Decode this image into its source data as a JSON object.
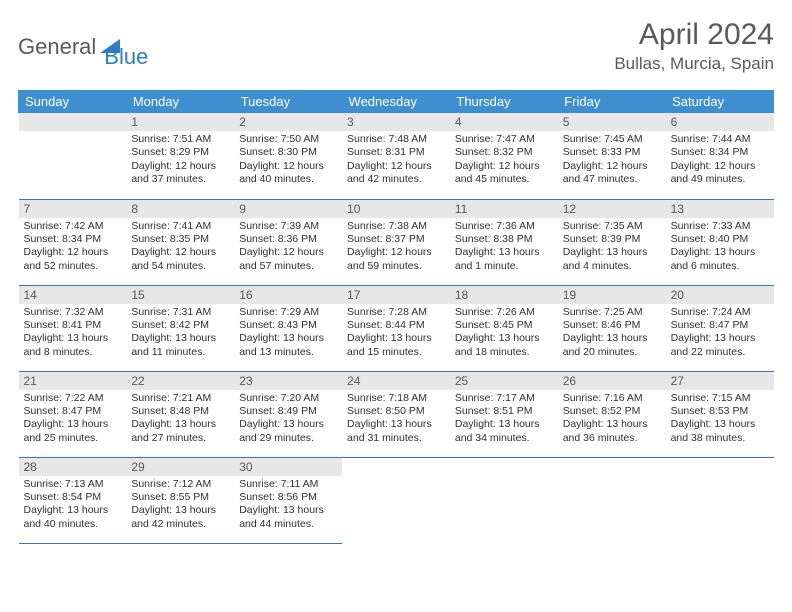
{
  "brand": {
    "part1": "General",
    "part2": "Blue"
  },
  "title": "April 2024",
  "location": "Bullas, Murcia, Spain",
  "colors": {
    "header_bg": "#3d8fcf",
    "header_text": "#ffffff",
    "daynum_bg": "#e7e7e7",
    "border": "#2f7bc4",
    "brand_gray": "#5a5a5a",
    "brand_blue": "#2f7bc4"
  },
  "day_headers": [
    "Sunday",
    "Monday",
    "Tuesday",
    "Wednesday",
    "Thursday",
    "Friday",
    "Saturday"
  ],
  "weeks": [
    [
      {
        "n": "",
        "sr": "",
        "ss": "",
        "dl": ""
      },
      {
        "n": "1",
        "sr": "Sunrise: 7:51 AM",
        "ss": "Sunset: 8:29 PM",
        "dl": "Daylight: 12 hours and 37 minutes."
      },
      {
        "n": "2",
        "sr": "Sunrise: 7:50 AM",
        "ss": "Sunset: 8:30 PM",
        "dl": "Daylight: 12 hours and 40 minutes."
      },
      {
        "n": "3",
        "sr": "Sunrise: 7:48 AM",
        "ss": "Sunset: 8:31 PM",
        "dl": "Daylight: 12 hours and 42 minutes."
      },
      {
        "n": "4",
        "sr": "Sunrise: 7:47 AM",
        "ss": "Sunset: 8:32 PM",
        "dl": "Daylight: 12 hours and 45 minutes."
      },
      {
        "n": "5",
        "sr": "Sunrise: 7:45 AM",
        "ss": "Sunset: 8:33 PM",
        "dl": "Daylight: 12 hours and 47 minutes."
      },
      {
        "n": "6",
        "sr": "Sunrise: 7:44 AM",
        "ss": "Sunset: 8:34 PM",
        "dl": "Daylight: 12 hours and 49 minutes."
      }
    ],
    [
      {
        "n": "7",
        "sr": "Sunrise: 7:42 AM",
        "ss": "Sunset: 8:34 PM",
        "dl": "Daylight: 12 hours and 52 minutes."
      },
      {
        "n": "8",
        "sr": "Sunrise: 7:41 AM",
        "ss": "Sunset: 8:35 PM",
        "dl": "Daylight: 12 hours and 54 minutes."
      },
      {
        "n": "9",
        "sr": "Sunrise: 7:39 AM",
        "ss": "Sunset: 8:36 PM",
        "dl": "Daylight: 12 hours and 57 minutes."
      },
      {
        "n": "10",
        "sr": "Sunrise: 7:38 AM",
        "ss": "Sunset: 8:37 PM",
        "dl": "Daylight: 12 hours and 59 minutes."
      },
      {
        "n": "11",
        "sr": "Sunrise: 7:36 AM",
        "ss": "Sunset: 8:38 PM",
        "dl": "Daylight: 13 hours and 1 minute."
      },
      {
        "n": "12",
        "sr": "Sunrise: 7:35 AM",
        "ss": "Sunset: 8:39 PM",
        "dl": "Daylight: 13 hours and 4 minutes."
      },
      {
        "n": "13",
        "sr": "Sunrise: 7:33 AM",
        "ss": "Sunset: 8:40 PM",
        "dl": "Daylight: 13 hours and 6 minutes."
      }
    ],
    [
      {
        "n": "14",
        "sr": "Sunrise: 7:32 AM",
        "ss": "Sunset: 8:41 PM",
        "dl": "Daylight: 13 hours and 8 minutes."
      },
      {
        "n": "15",
        "sr": "Sunrise: 7:31 AM",
        "ss": "Sunset: 8:42 PM",
        "dl": "Daylight: 13 hours and 11 minutes."
      },
      {
        "n": "16",
        "sr": "Sunrise: 7:29 AM",
        "ss": "Sunset: 8:43 PM",
        "dl": "Daylight: 13 hours and 13 minutes."
      },
      {
        "n": "17",
        "sr": "Sunrise: 7:28 AM",
        "ss": "Sunset: 8:44 PM",
        "dl": "Daylight: 13 hours and 15 minutes."
      },
      {
        "n": "18",
        "sr": "Sunrise: 7:26 AM",
        "ss": "Sunset: 8:45 PM",
        "dl": "Daylight: 13 hours and 18 minutes."
      },
      {
        "n": "19",
        "sr": "Sunrise: 7:25 AM",
        "ss": "Sunset: 8:46 PM",
        "dl": "Daylight: 13 hours and 20 minutes."
      },
      {
        "n": "20",
        "sr": "Sunrise: 7:24 AM",
        "ss": "Sunset: 8:47 PM",
        "dl": "Daylight: 13 hours and 22 minutes."
      }
    ],
    [
      {
        "n": "21",
        "sr": "Sunrise: 7:22 AM",
        "ss": "Sunset: 8:47 PM",
        "dl": "Daylight: 13 hours and 25 minutes."
      },
      {
        "n": "22",
        "sr": "Sunrise: 7:21 AM",
        "ss": "Sunset: 8:48 PM",
        "dl": "Daylight: 13 hours and 27 minutes."
      },
      {
        "n": "23",
        "sr": "Sunrise: 7:20 AM",
        "ss": "Sunset: 8:49 PM",
        "dl": "Daylight: 13 hours and 29 minutes."
      },
      {
        "n": "24",
        "sr": "Sunrise: 7:18 AM",
        "ss": "Sunset: 8:50 PM",
        "dl": "Daylight: 13 hours and 31 minutes."
      },
      {
        "n": "25",
        "sr": "Sunrise: 7:17 AM",
        "ss": "Sunset: 8:51 PM",
        "dl": "Daylight: 13 hours and 34 minutes."
      },
      {
        "n": "26",
        "sr": "Sunrise: 7:16 AM",
        "ss": "Sunset: 8:52 PM",
        "dl": "Daylight: 13 hours and 36 minutes."
      },
      {
        "n": "27",
        "sr": "Sunrise: 7:15 AM",
        "ss": "Sunset: 8:53 PM",
        "dl": "Daylight: 13 hours and 38 minutes."
      }
    ],
    [
      {
        "n": "28",
        "sr": "Sunrise: 7:13 AM",
        "ss": "Sunset: 8:54 PM",
        "dl": "Daylight: 13 hours and 40 minutes."
      },
      {
        "n": "29",
        "sr": "Sunrise: 7:12 AM",
        "ss": "Sunset: 8:55 PM",
        "dl": "Daylight: 13 hours and 42 minutes."
      },
      {
        "n": "30",
        "sr": "Sunrise: 7:11 AM",
        "ss": "Sunset: 8:56 PM",
        "dl": "Daylight: 13 hours and 44 minutes."
      },
      {
        "n": "",
        "sr": "",
        "ss": "",
        "dl": ""
      },
      {
        "n": "",
        "sr": "",
        "ss": "",
        "dl": ""
      },
      {
        "n": "",
        "sr": "",
        "ss": "",
        "dl": ""
      },
      {
        "n": "",
        "sr": "",
        "ss": "",
        "dl": ""
      }
    ]
  ]
}
